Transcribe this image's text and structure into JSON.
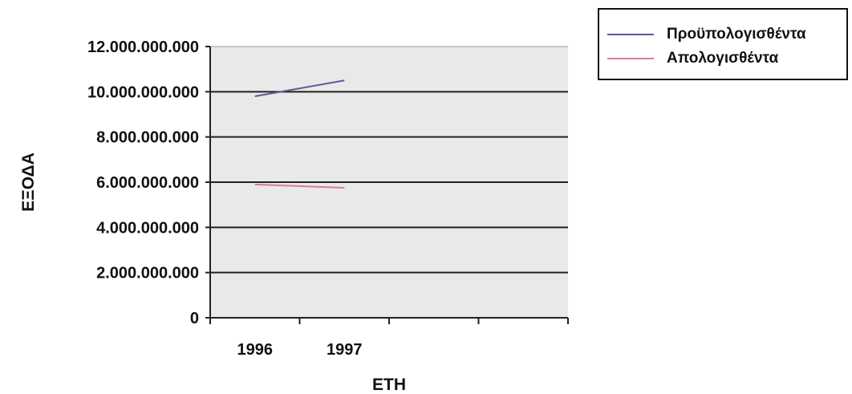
{
  "chart_data": {
    "type": "line",
    "categories": [
      "1996",
      "1997"
    ],
    "series": [
      {
        "name": "Προϋπολογισθέντα",
        "values": [
          9800000000,
          10500000000
        ],
        "color": "#5a5a9a"
      },
      {
        "name": "Απολογισθέντα",
        "values": [
          5900000000,
          5750000000
        ],
        "color": "#e07a8a"
      }
    ],
    "xlabel": "ΕΤΗ",
    "ylabel": "ΕΞΟΔΑ",
    "ylim": [
      0,
      12000000000
    ],
    "yticks": [
      "0",
      "2.000.000.000",
      "4.000.000.000",
      "6.000.000.000",
      "8.000.000.000",
      "10.000.000.000",
      "12.000.000.000"
    ],
    "grid": true,
    "legend_position": "top-right",
    "plot_background": "#e9e9e9"
  }
}
